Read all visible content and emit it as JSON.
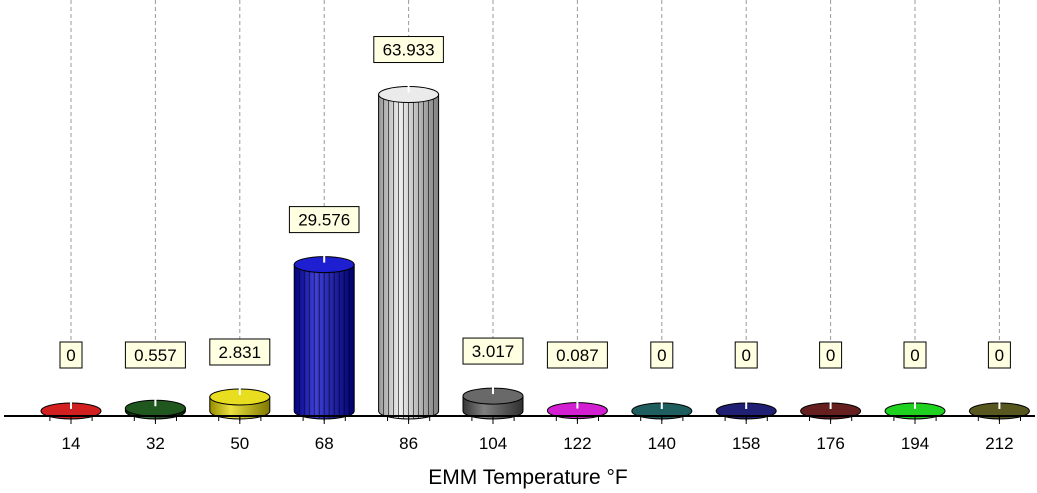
{
  "chart_data": {
    "type": "bar",
    "style": "3d-cylinder",
    "categories": [
      "14",
      "32",
      "50",
      "68",
      "86",
      "104",
      "122",
      "140",
      "158",
      "176",
      "194",
      "212"
    ],
    "values": [
      0,
      0.557,
      2.831,
      29.576,
      63.933,
      3.017,
      0.087,
      0,
      0,
      0,
      0,
      0
    ],
    "value_labels": [
      "0",
      "0.557",
      "2.831",
      "29.576",
      "63.933",
      "3.017",
      "0.087",
      "0",
      "0",
      "0",
      "0",
      "0"
    ],
    "colors": [
      "#cc0000",
      "#004000",
      "#e6d800",
      "#0000cc",
      "#e8e8e8",
      "#555555",
      "#cc00cc",
      "#004848",
      "#000060",
      "#500000",
      "#00cc00",
      "#404000"
    ],
    "title": "",
    "xlabel": "EMM Temperature °F",
    "ylabel": "",
    "ylim": [
      0,
      80
    ],
    "grid": "vertical-dashed",
    "legend": "none",
    "label_background": "#ffffe1"
  }
}
